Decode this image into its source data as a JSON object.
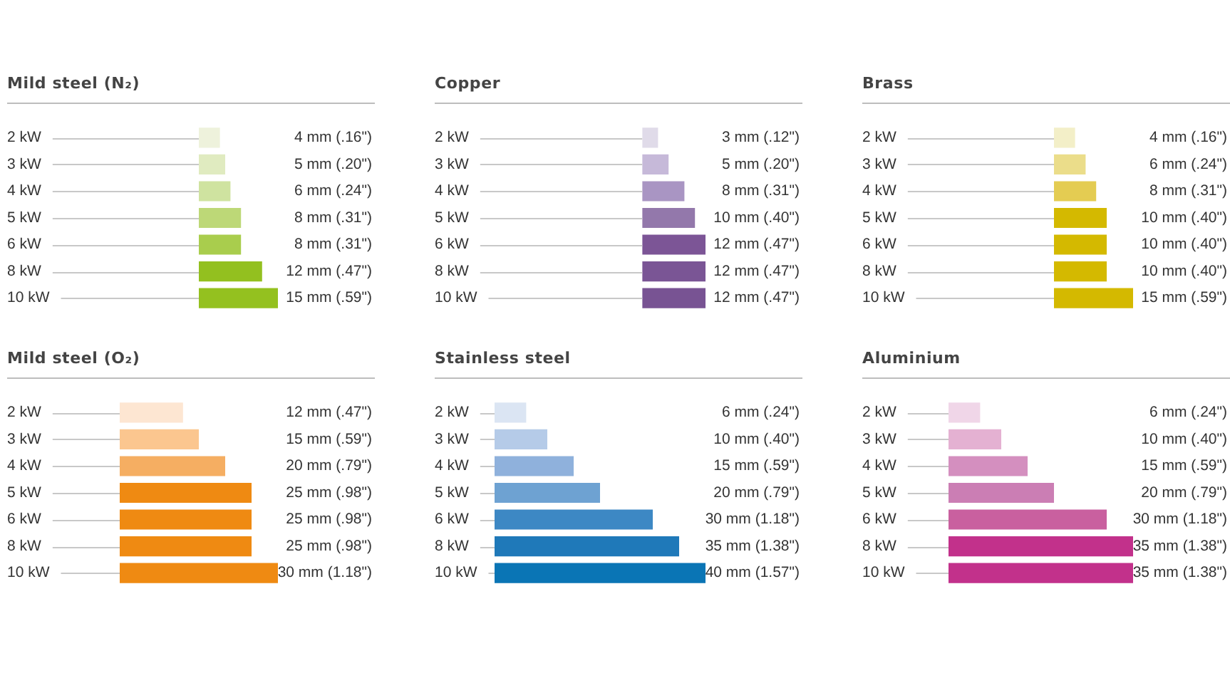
{
  "chart_data": [
    {
      "type": "bar",
      "orientation": "horizontal",
      "title": "Mild steel (N₂)",
      "categories": [
        "2 kW",
        "3 kW",
        "4 kW",
        "5 kW",
        "6 kW",
        "8 kW",
        "10 kW"
      ],
      "values": [
        4,
        5,
        6,
        8,
        8,
        12,
        15
      ],
      "colors": [
        "#eef2dc",
        "#e0ebc0",
        "#cfe3a0",
        "#bdd877",
        "#a9cd4d",
        "#93c01f",
        "#94c11f"
      ],
      "value_labels": [
        "4 mm (.16\")",
        "5 mm (.20\")",
        "6 mm (.24\")",
        "8 mm (.31\")",
        "8 mm (.31\")",
        "12 mm (.47\")",
        "15 mm (.59\")"
      ]
    },
    {
      "type": "bar",
      "orientation": "horizontal",
      "title": "Copper",
      "categories": [
        "2 kW",
        "3 kW",
        "4 kW",
        "5 kW",
        "6 kW",
        "8 kW",
        "10 kW"
      ],
      "values": [
        3,
        5,
        8,
        10,
        12,
        12,
        12
      ],
      "colors": [
        "#e0dbe9",
        "#c6b9d9",
        "#a995c3",
        "#9378ab",
        "#7c5596",
        "#7a5595",
        "#785393"
      ],
      "value_labels": [
        "3 mm (.12\")",
        "5 mm (.20\")",
        "8 mm (.31\")",
        "10 mm (.40\")",
        "12 mm (.47\")",
        "12 mm (.47\")",
        "12 mm (.47\")"
      ]
    },
    {
      "type": "bar",
      "orientation": "horizontal",
      "title": "Brass",
      "categories": [
        "2 kW",
        "3 kW",
        "4 kW",
        "5 kW",
        "6 kW",
        "8 kW",
        "10 kW"
      ],
      "values": [
        4,
        6,
        8,
        10,
        10,
        10,
        15
      ],
      "colors": [
        "#f3efc8",
        "#ebdd8a",
        "#e4cc52",
        "#d4b900",
        "#d4b900",
        "#d4b900",
        "#d4b900"
      ],
      "value_labels": [
        "4 mm (.16\")",
        "6 mm (.24\")",
        "8 mm (.31\")",
        "10 mm (.40\")",
        "10 mm (.40\")",
        "10 mm (.40\")",
        "15 mm (.59\")"
      ]
    },
    {
      "type": "bar",
      "orientation": "horizontal",
      "title": "Mild steel (O₂)",
      "categories": [
        "2 kW",
        "3 kW",
        "4 kW",
        "5 kW",
        "6 kW",
        "8 kW",
        "10 kW"
      ],
      "values": [
        12,
        15,
        20,
        25,
        25,
        25,
        30
      ],
      "colors": [
        "#fde6d2",
        "#fbc68f",
        "#f5ae62",
        "#ef8a12",
        "#ef8a12",
        "#ef8a12",
        "#ef8a12"
      ],
      "value_labels": [
        "12 mm (.47\")",
        "15 mm (.59\")",
        "20 mm (.79\")",
        "25 mm (.98\")",
        "25 mm (.98\")",
        "25 mm (.98\")",
        "30 mm (1.18\")"
      ]
    },
    {
      "type": "bar",
      "orientation": "horizontal",
      "title": "Stainless steel",
      "categories": [
        "2 kW",
        "3 kW",
        "4 kW",
        "5 kW",
        "6 kW",
        "8 kW",
        "10 kW"
      ],
      "values": [
        6,
        10,
        15,
        20,
        30,
        35,
        40
      ],
      "colors": [
        "#dbe5f3",
        "#b5cbe8",
        "#8fb1dc",
        "#6ea2d2",
        "#3d88c4",
        "#1f79b9",
        "#0a75b5"
      ],
      "value_labels": [
        "6 mm (.24\")",
        "10 mm (.40\")",
        "15 mm (.59\")",
        "20 mm (.79\")",
        "30 mm (1.18\")",
        "35 mm (1.38\")",
        "40 mm (1.57\")"
      ]
    },
    {
      "type": "bar",
      "orientation": "horizontal",
      "title": "Aluminium",
      "categories": [
        "2 kW",
        "3 kW",
        "4 kW",
        "5 kW",
        "6 kW",
        "8 kW",
        "10 kW"
      ],
      "values": [
        6,
        10,
        15,
        20,
        30,
        35,
        35
      ],
      "colors": [
        "#f0d6e8",
        "#e4b1d2",
        "#d48fbf",
        "#cb7eb4",
        "#c9609f",
        "#c2318b",
        "#c2318b"
      ],
      "value_labels": [
        "6 mm (.24\")",
        "10 mm (.40\")",
        "15 mm (.59\")",
        "20 mm (.79\")",
        "30 mm (1.18\")",
        "35 mm (1.38\")",
        "35 mm (1.38\")"
      ]
    }
  ]
}
